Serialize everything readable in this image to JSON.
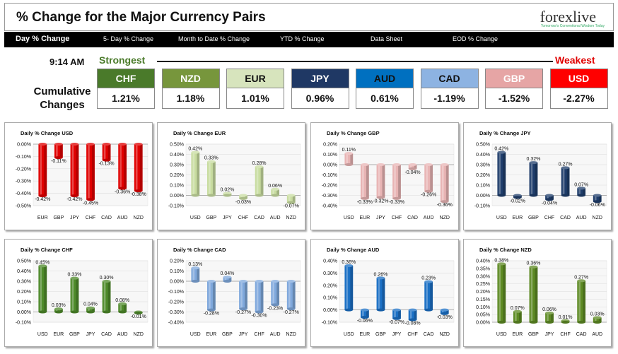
{
  "header": {
    "title": "% Change for the Major Currency Pairs",
    "logo": "forexlive",
    "logo_tagline": "Tomorrow's Conventional Wisdom Today"
  },
  "nav": {
    "items": [
      {
        "label": "Day % Change",
        "active": true
      },
      {
        "label": "5- Day % Change",
        "active": false
      },
      {
        "label": "Month to Date % Change",
        "active": false
      },
      {
        "label": "YTD % Change",
        "active": false
      },
      {
        "label": "Data Sheet",
        "active": false
      },
      {
        "label": "EOD % Change",
        "active": false
      }
    ]
  },
  "summary": {
    "time": "9:14 AM",
    "strongest_label": "Strongest",
    "weakest_label": "Weakest",
    "cumulative_label": "Cumulative Changes",
    "currencies": [
      {
        "name": "CHF",
        "value": "1.21%",
        "color": "#4a7a2a",
        "text_color": "#ffffff"
      },
      {
        "name": "NZD",
        "value": "1.18%",
        "color": "#77963c",
        "text_color": "#ffffff"
      },
      {
        "name": "EUR",
        "value": "1.01%",
        "color": "#d7e4bd",
        "text_color": "#111111"
      },
      {
        "name": "JPY",
        "value": "0.96%",
        "color": "#1f3864",
        "text_color": "#ffffff"
      },
      {
        "name": "AUD",
        "value": "0.61%",
        "color": "#0070c0",
        "text_color": "#111111"
      },
      {
        "name": "CAD",
        "value": "-1.19%",
        "color": "#8db3e2",
        "text_color": "#111111"
      },
      {
        "name": "GBP",
        "value": "-1.52%",
        "color": "#e6a5a5",
        "text_color": "#ffffff"
      },
      {
        "name": "USD",
        "value": "-2.27%",
        "color": "#ff0000",
        "text_color": "#ffffff"
      }
    ]
  },
  "colors": {
    "USD": "#e00000",
    "EUR": "#c8dca0",
    "GBP": "#e8b4b4",
    "JPY": "#1f3d6b",
    "CHF": "#4e8a2a",
    "CAD": "#7fa8dc",
    "AUD": "#1a6fc4",
    "NZD": "#5d8a23"
  },
  "chart_data": [
    {
      "type": "bar",
      "id": "USD",
      "title": "Daily % Change USD",
      "categories": [
        "EUR",
        "GBP",
        "JPY",
        "CHF",
        "CAD",
        "AUD",
        "NZD"
      ],
      "values": [
        -0.42,
        -0.11,
        -0.42,
        -0.45,
        -0.13,
        -0.36,
        -0.38
      ],
      "labels": [
        "-0.42%",
        "-0.11%",
        "-0.42%",
        "-0.45%",
        "-0.13%",
        "-0.36%",
        "-0.38%"
      ],
      "yticks": [
        "0.00%",
        "-0.10%",
        "-0.20%",
        "-0.30%",
        "-0.40%",
        "-0.50%"
      ],
      "ylim": [
        -0.5,
        0.0
      ],
      "tick_step": 0.1
    },
    {
      "type": "bar",
      "id": "EUR",
      "title": "Daily % Change EUR",
      "categories": [
        "USD",
        "GBP",
        "JPY",
        "CHF",
        "CAD",
        "AUD",
        "NZD"
      ],
      "values": [
        0.42,
        0.33,
        0.02,
        -0.03,
        0.28,
        0.06,
        -0.07
      ],
      "labels": [
        "0.42%",
        "0.33%",
        "0.02%",
        "-0.03%",
        "0.28%",
        "0.06%",
        "-0.07%"
      ],
      "yticks": [
        "0.50%",
        "0.40%",
        "0.30%",
        "0.20%",
        "0.10%",
        "0.00%",
        "-0.10%"
      ],
      "ylim": [
        -0.1,
        0.5
      ],
      "tick_step": 0.1
    },
    {
      "type": "bar",
      "id": "GBP",
      "title": "Daily % Change GBP",
      "categories": [
        "USD",
        "EUR",
        "JPY",
        "CHF",
        "CAD",
        "AUD",
        "NZD"
      ],
      "values": [
        0.11,
        -0.33,
        -0.32,
        -0.33,
        -0.04,
        -0.26,
        -0.36
      ],
      "labels": [
        "0.11%",
        "-0.33%",
        "-0.32%",
        "-0.33%",
        "-0.04%",
        "-0.26%",
        "-0.36%"
      ],
      "yticks": [
        "0.20%",
        "0.10%",
        "0.00%",
        "-0.10%",
        "-0.20%",
        "-0.30%",
        "-0.40%"
      ],
      "ylim": [
        -0.4,
        0.2
      ],
      "tick_step": 0.1
    },
    {
      "type": "bar",
      "id": "JPY",
      "title": "Daily % Change JPY",
      "categories": [
        "USD",
        "EUR",
        "GBP",
        "CHF",
        "CAD",
        "AUD",
        "NZD"
      ],
      "values": [
        0.42,
        -0.02,
        0.32,
        -0.04,
        0.27,
        0.07,
        -0.06
      ],
      "labels": [
        "0.42%",
        "-0.02%",
        "0.32%",
        "-0.04%",
        "0.27%",
        "0.07%",
        "-0.06%"
      ],
      "yticks": [
        "0.50%",
        "0.40%",
        "0.30%",
        "0.20%",
        "0.10%",
        "0.00%",
        "-0.10%"
      ],
      "ylim": [
        -0.1,
        0.5
      ],
      "tick_step": 0.1
    },
    {
      "type": "bar",
      "id": "CHF",
      "title": "Daily % Change CHF",
      "categories": [
        "USD",
        "EUR",
        "GBP",
        "JPY",
        "CAD",
        "AUD",
        "NZD"
      ],
      "values": [
        0.45,
        0.03,
        0.33,
        0.04,
        0.3,
        0.08,
        -0.01
      ],
      "labels": [
        "0.45%",
        "0.03%",
        "0.33%",
        "0.04%",
        "0.30%",
        "0.08%",
        "-0.01%"
      ],
      "yticks": [
        "0.50%",
        "0.40%",
        "0.30%",
        "0.20%",
        "0.10%",
        "0.00%",
        "-0.10%"
      ],
      "ylim": [
        -0.1,
        0.5
      ],
      "tick_step": 0.1
    },
    {
      "type": "bar",
      "id": "CAD",
      "title": "Daily % Change CAD",
      "categories": [
        "USD",
        "EUR",
        "GBP",
        "JPY",
        "CHF",
        "AUD",
        "NZD"
      ],
      "values": [
        0.13,
        -0.28,
        0.04,
        -0.27,
        -0.3,
        -0.23,
        -0.27
      ],
      "labels": [
        "0.13%",
        "-0.28%",
        "0.04%",
        "-0.27%",
        "-0.30%",
        "-0.23%",
        "-0.27%"
      ],
      "yticks": [
        "0.20%",
        "0.10%",
        "0.00%",
        "-0.10%",
        "-0.20%",
        "-0.30%",
        "-0.40%"
      ],
      "ylim": [
        -0.4,
        0.2
      ],
      "tick_step": 0.1
    },
    {
      "type": "bar",
      "id": "AUD",
      "title": "Daily % Change AUD",
      "categories": [
        "USD",
        "EUR",
        "GBP",
        "JPY",
        "CHF",
        "CAD",
        "NZD"
      ],
      "values": [
        0.36,
        -0.06,
        0.26,
        -0.07,
        -0.08,
        0.23,
        -0.03
      ],
      "labels": [
        "0.36%",
        "-0.06%",
        "0.26%",
        "-0.07%",
        "-0.08%",
        "0.23%",
        "-0.03%"
      ],
      "yticks": [
        "0.40%",
        "0.30%",
        "0.20%",
        "0.10%",
        "0.00%",
        "-0.10%"
      ],
      "ylim": [
        -0.1,
        0.4
      ],
      "tick_step": 0.1
    },
    {
      "type": "bar",
      "id": "NZD",
      "title": "Daily % Change NZD",
      "categories": [
        "USD",
        "EUR",
        "GBP",
        "JPY",
        "CHF",
        "CAD",
        "AUD"
      ],
      "values": [
        0.38,
        0.07,
        0.36,
        0.06,
        0.01,
        0.27,
        0.03
      ],
      "labels": [
        "0.38%",
        "0.07%",
        "0.36%",
        "0.06%",
        "0.01%",
        "0.27%",
        "0.03%"
      ],
      "yticks": [
        "0.40%",
        "0.35%",
        "0.30%",
        "0.25%",
        "0.20%",
        "0.15%",
        "0.10%",
        "0.05%",
        "0.00%"
      ],
      "ylim": [
        0.0,
        0.4
      ],
      "tick_step": 0.05
    }
  ]
}
